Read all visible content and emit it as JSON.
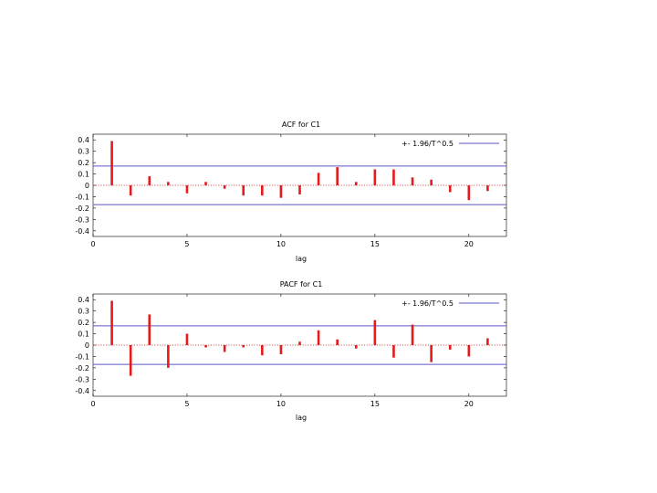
{
  "chart_data": [
    {
      "type": "bar",
      "title": "ACF for C1",
      "xlabel": "lag",
      "ylabel": "",
      "xlim": [
        0,
        22
      ],
      "ylim": [
        -0.45,
        0.45
      ],
      "x_ticks": [
        "0",
        "5",
        "10",
        "15",
        "20"
      ],
      "y_ticks": [
        "0.4",
        "0.3",
        "0.2",
        "0.1",
        "0",
        "-0.1",
        "-0.2",
        "-0.3",
        "-0.4"
      ],
      "legend": "+- 1.96/T^0.5",
      "legend_position": "top-right",
      "confidence_band": 0.17,
      "series": [
        {
          "x": [
            1,
            2,
            3,
            4,
            5,
            6,
            7,
            8,
            9,
            10,
            11,
            12,
            13,
            14,
            15,
            16,
            17,
            18,
            19,
            20,
            21
          ],
          "values": [
            0.39,
            -0.09,
            0.08,
            0.03,
            -0.07,
            0.03,
            -0.03,
            -0.09,
            -0.09,
            -0.11,
            -0.08,
            0.11,
            0.16,
            0.03,
            0.14,
            0.14,
            0.07,
            0.05,
            -0.06,
            -0.13,
            -0.05
          ]
        }
      ],
      "colors": {
        "bar": "#e41a1c",
        "band": "#5b57c7",
        "zero": "#c02020"
      }
    },
    {
      "type": "bar",
      "title": "PACF for C1",
      "xlabel": "lag",
      "ylabel": "",
      "xlim": [
        0,
        22
      ],
      "ylim": [
        -0.45,
        0.45
      ],
      "x_ticks": [
        "0",
        "5",
        "10",
        "15",
        "20"
      ],
      "y_ticks": [
        "0.4",
        "0.3",
        "0.2",
        "0.1",
        "0",
        "-0.1",
        "-0.2",
        "-0.3",
        "-0.4"
      ],
      "legend": "+- 1.96/T^0.5",
      "legend_position": "top-right",
      "confidence_band": 0.17,
      "series": [
        {
          "x": [
            1,
            2,
            3,
            4,
            5,
            6,
            7,
            8,
            9,
            10,
            11,
            12,
            13,
            14,
            15,
            16,
            17,
            18,
            19,
            20,
            21
          ],
          "values": [
            0.39,
            -0.27,
            0.27,
            -0.2,
            0.1,
            -0.02,
            -0.06,
            -0.02,
            -0.09,
            -0.08,
            0.03,
            0.13,
            0.05,
            -0.03,
            0.22,
            -0.11,
            0.18,
            -0.15,
            -0.04,
            -0.1,
            0.06
          ]
        }
      ],
      "colors": {
        "bar": "#e41a1c",
        "band": "#5b57c7",
        "zero": "#c02020"
      }
    }
  ]
}
